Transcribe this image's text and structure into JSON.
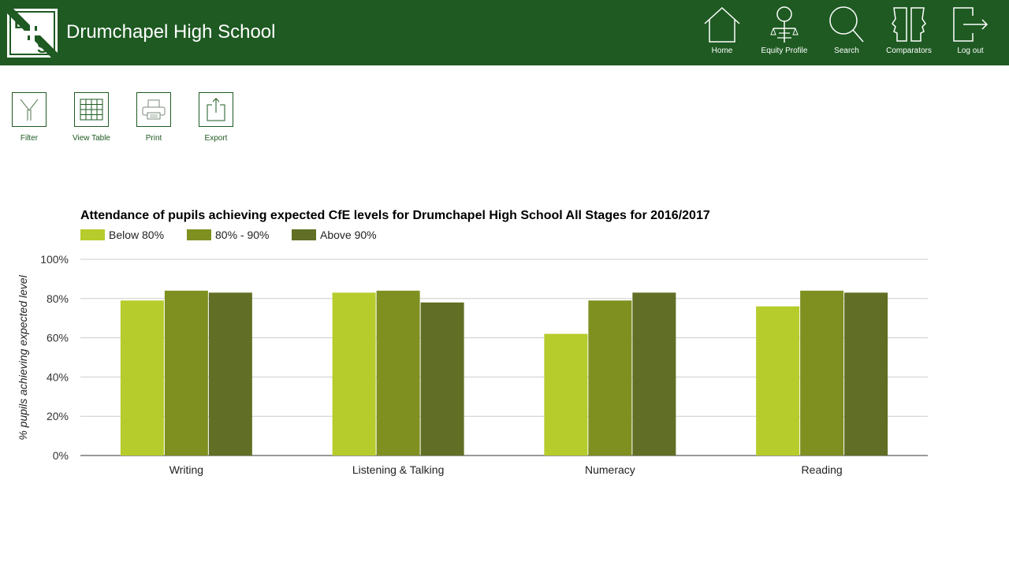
{
  "header": {
    "logo_text": "DHS",
    "school_name": "Drumchapel High School",
    "background": "#1e5a22",
    "nav": [
      {
        "label": "Home",
        "icon": "home-icon"
      },
      {
        "label": "Equity Profile",
        "icon": "equity-profile-icon"
      },
      {
        "label": "Search",
        "icon": "search-icon"
      },
      {
        "label": "Comparators",
        "icon": "comparators-icon"
      },
      {
        "label": "Log out",
        "icon": "logout-icon"
      }
    ]
  },
  "toolbar": [
    {
      "label": "Filter",
      "icon": "filter-icon"
    },
    {
      "label": "View Table",
      "icon": "table-icon"
    },
    {
      "label": "Print",
      "icon": "printer-icon"
    },
    {
      "label": "Export",
      "icon": "export-icon"
    }
  ],
  "chart_data": {
    "type": "bar",
    "title": "Attendance of pupils achieving expected CfE levels for Drumchapel High School All Stages for 2016/2017",
    "xlabel": "",
    "ylabel": "% pupils achieving expected level",
    "categories": [
      "Writing",
      "Listening & Talking",
      "Numeracy",
      "Reading"
    ],
    "series": [
      {
        "name": "Below 80%",
        "color": "#b6cc2c",
        "values": [
          79,
          83,
          62,
          76
        ]
      },
      {
        "name": "80% - 90%",
        "color": "#7f9020",
        "values": [
          84,
          84,
          79,
          84
        ]
      },
      {
        "name": "Above 90%",
        "color": "#606f25",
        "values": [
          83,
          78,
          83,
          83
        ]
      }
    ],
    "ylim": [
      0,
      100
    ],
    "yticks": [
      "0%",
      "20%",
      "40%",
      "60%",
      "80%",
      "100%"
    ],
    "grid": true,
    "legend": "top-left"
  }
}
